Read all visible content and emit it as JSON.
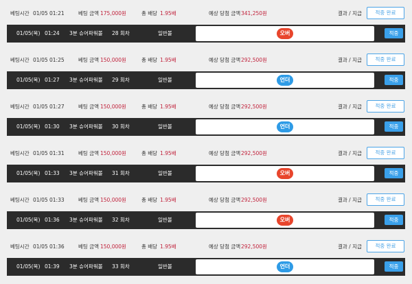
{
  "records": [
    {
      "bet_time_label": "베팅시간",
      "bet_time": "01/05 01:21",
      "amount_label": "베팅 금액",
      "amount": "175,000원",
      "odds_label": "총 배당",
      "odds": "1.95배",
      "expected_label": "예상 당첨 금액",
      "expected": "341,250원",
      "result_label": "결과 / 지급",
      "result_button": "적중 완료",
      "date": "01/05(목)",
      "time": "01:24",
      "game": "3분 슈어파워볼",
      "round": "28 회차",
      "ball": "일반볼",
      "pick": "오버",
      "pick_color": "#e8452c",
      "status": "적중"
    },
    {
      "bet_time_label": "베팅시간",
      "bet_time": "01/05 01:25",
      "amount_label": "베팅 금액",
      "amount": "150,000원",
      "odds_label": "총 배당",
      "odds": "1.95배",
      "expected_label": "예상 당첨 금액",
      "expected": "292,500원",
      "result_label": "결과 / 지급",
      "result_button": "적중 완료",
      "date": "01/05(목)",
      "time": "01:27",
      "game": "3분 슈어파워볼",
      "round": "29 회차",
      "ball": "일반볼",
      "pick": "언더",
      "pick_color": "#2e9be6",
      "status": "적중"
    },
    {
      "bet_time_label": "베팅시간",
      "bet_time": "01/05 01:27",
      "amount_label": "베팅 금액",
      "amount": "150,000원",
      "odds_label": "총 배당",
      "odds": "1.95배",
      "expected_label": "예상 당첨 금액",
      "expected": "292,500원",
      "result_label": "결과 / 지급",
      "result_button": "적중 완료",
      "date": "01/05(목)",
      "time": "01:30",
      "game": "3분 슈어파워볼",
      "round": "30 회차",
      "ball": "일반볼",
      "pick": "언더",
      "pick_color": "#2e9be6",
      "status": "적중"
    },
    {
      "bet_time_label": "베팅시간",
      "bet_time": "01/05 01:31",
      "amount_label": "베팅 금액",
      "amount": "150,000원",
      "odds_label": "총 배당",
      "odds": "1.95배",
      "expected_label": "예상 당첨 금액",
      "expected": "292,500원",
      "result_label": "결과 / 지급",
      "result_button": "적중 완료",
      "date": "01/05(목)",
      "time": "01:33",
      "game": "3분 슈어파워볼",
      "round": "31 회차",
      "ball": "일반볼",
      "pick": "오버",
      "pick_color": "#e8452c",
      "status": "적중"
    },
    {
      "bet_time_label": "베팅시간",
      "bet_time": "01/05 01:33",
      "amount_label": "베팅 금액",
      "amount": "150,000원",
      "odds_label": "총 배당",
      "odds": "1.95배",
      "expected_label": "예상 당첨 금액",
      "expected": "292,500원",
      "result_label": "결과 / 지급",
      "result_button": "적중 완료",
      "date": "01/05(목)",
      "time": "01:36",
      "game": "3분 슈어파워볼",
      "round": "32 회차",
      "ball": "일반볼",
      "pick": "오버",
      "pick_color": "#e8452c",
      "status": "적중"
    },
    {
      "bet_time_label": "베팅시간",
      "bet_time": "01/05 01:36",
      "amount_label": "베팅 금액",
      "amount": "150,000원",
      "odds_label": "총 배당",
      "odds": "1.95배",
      "expected_label": "예상 당첨 금액",
      "expected": "292,500원",
      "result_label": "결과 / 지급",
      "result_button": "적중 완료",
      "date": "01/05(목)",
      "time": "01:39",
      "game": "3분 슈어파워볼",
      "round": "33 회차",
      "ball": "일반볼",
      "pick": "언더",
      "pick_color": "#2e9be6",
      "status": "적중"
    }
  ]
}
